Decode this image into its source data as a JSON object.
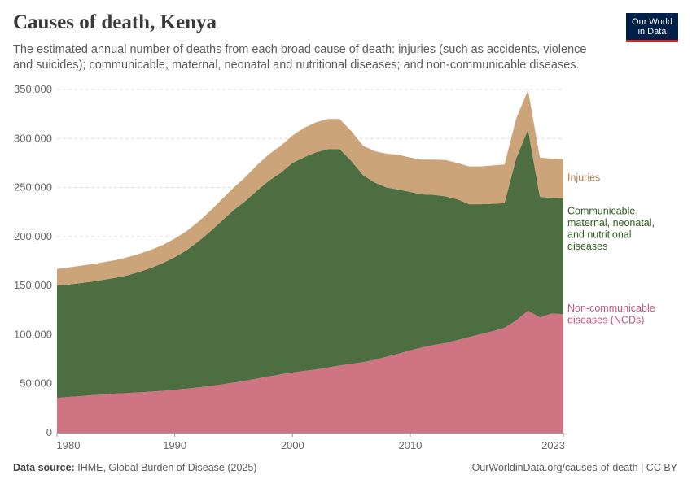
{
  "header": {
    "title": "Causes of death, Kenya",
    "subtitle": "The estimated annual number of deaths from each broad cause of death: injuries (such as accidents, violence and suicides); communicable, maternal, neonatal and nutritional diseases; and non-communicable diseases."
  },
  "logo": {
    "line1": "Our World",
    "line2": "in Data",
    "bg_color": "#002147",
    "accent_color": "#ce261e"
  },
  "footer": {
    "source_label": "Data source:",
    "source_text": "IHME, Global Burden of Disease (2025)",
    "url": "OurWorldinData.org/causes-of-death | CC BY"
  },
  "chart_data": {
    "type": "area",
    "stacked": true,
    "title": "Causes of death, Kenya",
    "xlabel": "",
    "ylabel": "",
    "xlim": [
      1980,
      2023
    ],
    "ylim": [
      0,
      350000
    ],
    "grid": true,
    "legend_placement": "right",
    "x_ticks": [
      {
        "value": 1980,
        "label": "1980"
      },
      {
        "value": 1990,
        "label": "1990"
      },
      {
        "value": 2000,
        "label": "2000"
      },
      {
        "value": 2010,
        "label": "2010"
      },
      {
        "value": 2023,
        "label": "2023"
      }
    ],
    "y_ticks": [
      {
        "value": 0,
        "label": "0"
      },
      {
        "value": 50000,
        "label": "50,000"
      },
      {
        "value": 100000,
        "label": "100,000"
      },
      {
        "value": 150000,
        "label": "150,000"
      },
      {
        "value": 200000,
        "label": "200,000"
      },
      {
        "value": 250000,
        "label": "250,000"
      },
      {
        "value": 300000,
        "label": "300,000"
      },
      {
        "value": 350000,
        "label": "350,000"
      }
    ],
    "x": [
      1980,
      1981,
      1982,
      1983,
      1984,
      1985,
      1986,
      1987,
      1988,
      1989,
      1990,
      1991,
      1992,
      1993,
      1994,
      1995,
      1996,
      1997,
      1998,
      1999,
      2000,
      2001,
      2002,
      2003,
      2004,
      2005,
      2006,
      2007,
      2008,
      2009,
      2010,
      2011,
      2012,
      2013,
      2014,
      2015,
      2016,
      2017,
      2018,
      2019,
      2020,
      2021,
      2022,
      2023
    ],
    "series": [
      {
        "name": "Non-communicable diseases (NCDs)",
        "legend_lines": [
          "Non-communicable",
          "diseases (NCDs)"
        ],
        "color": "#ce7483",
        "text_color": "#c2557a",
        "values": [
          35500,
          36500,
          37300,
          38200,
          39100,
          39900,
          40500,
          41100,
          41900,
          42700,
          43700,
          44900,
          46200,
          47600,
          49300,
          51100,
          53100,
          55200,
          57400,
          59500,
          61400,
          63000,
          64500,
          66500,
          68500,
          70300,
          72000,
          74500,
          77500,
          80500,
          84000,
          87000,
          89500,
          91500,
          94500,
          97500,
          100500,
          103500,
          107000,
          114500,
          124500,
          117500,
          121500,
          121000
        ],
        "label_at": 121000
      },
      {
        "name": "Communicable, maternal, neonatal, and nutritional diseases",
        "legend_lines": [
          "Communicable,",
          "maternal, neonatal,",
          "and nutritional",
          "diseases"
        ],
        "color": "#4c6e41",
        "text_color": "#2e5a20",
        "values": [
          114500,
          114500,
          115200,
          115800,
          116900,
          118100,
          120000,
          122900,
          126100,
          130300,
          135300,
          141100,
          148800,
          157400,
          166700,
          175900,
          183100,
          191800,
          199600,
          205500,
          213600,
          218000,
          221500,
          222500,
          220500,
          206700,
          190500,
          180500,
          172500,
          167500,
          161500,
          156000,
          153000,
          149500,
          143500,
          135500,
          132500,
          130000,
          127000,
          165500,
          184500,
          123000,
          118000,
          118000
        ],
        "label_at": 208000
      },
      {
        "name": "Injuries",
        "legend_lines": [
          "Injuries"
        ],
        "color": "#cca47a",
        "text_color": "#b07f4b",
        "values": [
          17000,
          17500,
          17800,
          18000,
          18000,
          18000,
          18500,
          18500,
          18500,
          18500,
          19000,
          19500,
          20000,
          21000,
          22000,
          23000,
          24500,
          26000,
          27000,
          27500,
          28000,
          30000,
          30500,
          31000,
          31000,
          30500,
          30000,
          32000,
          34500,
          35500,
          35000,
          35500,
          36000,
          37000,
          37000,
          38500,
          38500,
          39000,
          39500,
          40500,
          40500,
          40000,
          40000,
          40000
        ],
        "label_at": 260000
      }
    ]
  }
}
